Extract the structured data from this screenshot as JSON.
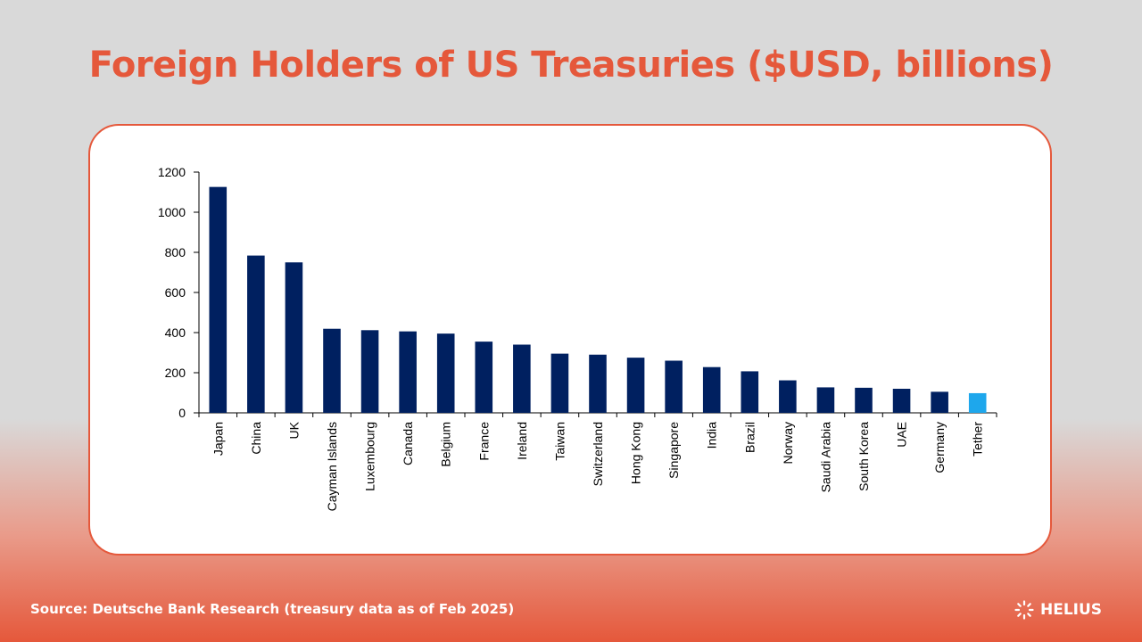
{
  "slide": {
    "title": "Foreign Holders of US Treasuries ($USD, billions)",
    "title_color": "#e5583b",
    "source": "Source: Deutsche Bank Research (treasury data as of Feb 2025)",
    "brand": "HELIUS"
  },
  "chart_data": {
    "type": "bar",
    "categories": [
      "Japan",
      "China",
      "UK",
      "Cayman Islands",
      "Luxembourg",
      "Canada",
      "Belgium",
      "France",
      "Ireland",
      "Taiwan",
      "Switzerland",
      "Hong Kong",
      "Singapore",
      "India",
      "Brazil",
      "Norway",
      "Saudi Arabia",
      "South Korea",
      "UAE",
      "Germany",
      "Tether"
    ],
    "values": [
      1126,
      784,
      750,
      419,
      412,
      406,
      395,
      355,
      340,
      295,
      290,
      275,
      260,
      228,
      207,
      162,
      127,
      125,
      120,
      105,
      98
    ],
    "colors": [
      "#002060",
      "#002060",
      "#002060",
      "#002060",
      "#002060",
      "#002060",
      "#002060",
      "#002060",
      "#002060",
      "#002060",
      "#002060",
      "#002060",
      "#002060",
      "#002060",
      "#002060",
      "#002060",
      "#002060",
      "#002060",
      "#002060",
      "#002060",
      "#1ea7ec"
    ],
    "ylim": [
      0,
      1200
    ],
    "yticks": [
      0,
      200,
      400,
      600,
      800,
      1000,
      1200
    ],
    "grid": false,
    "legend": "none"
  }
}
